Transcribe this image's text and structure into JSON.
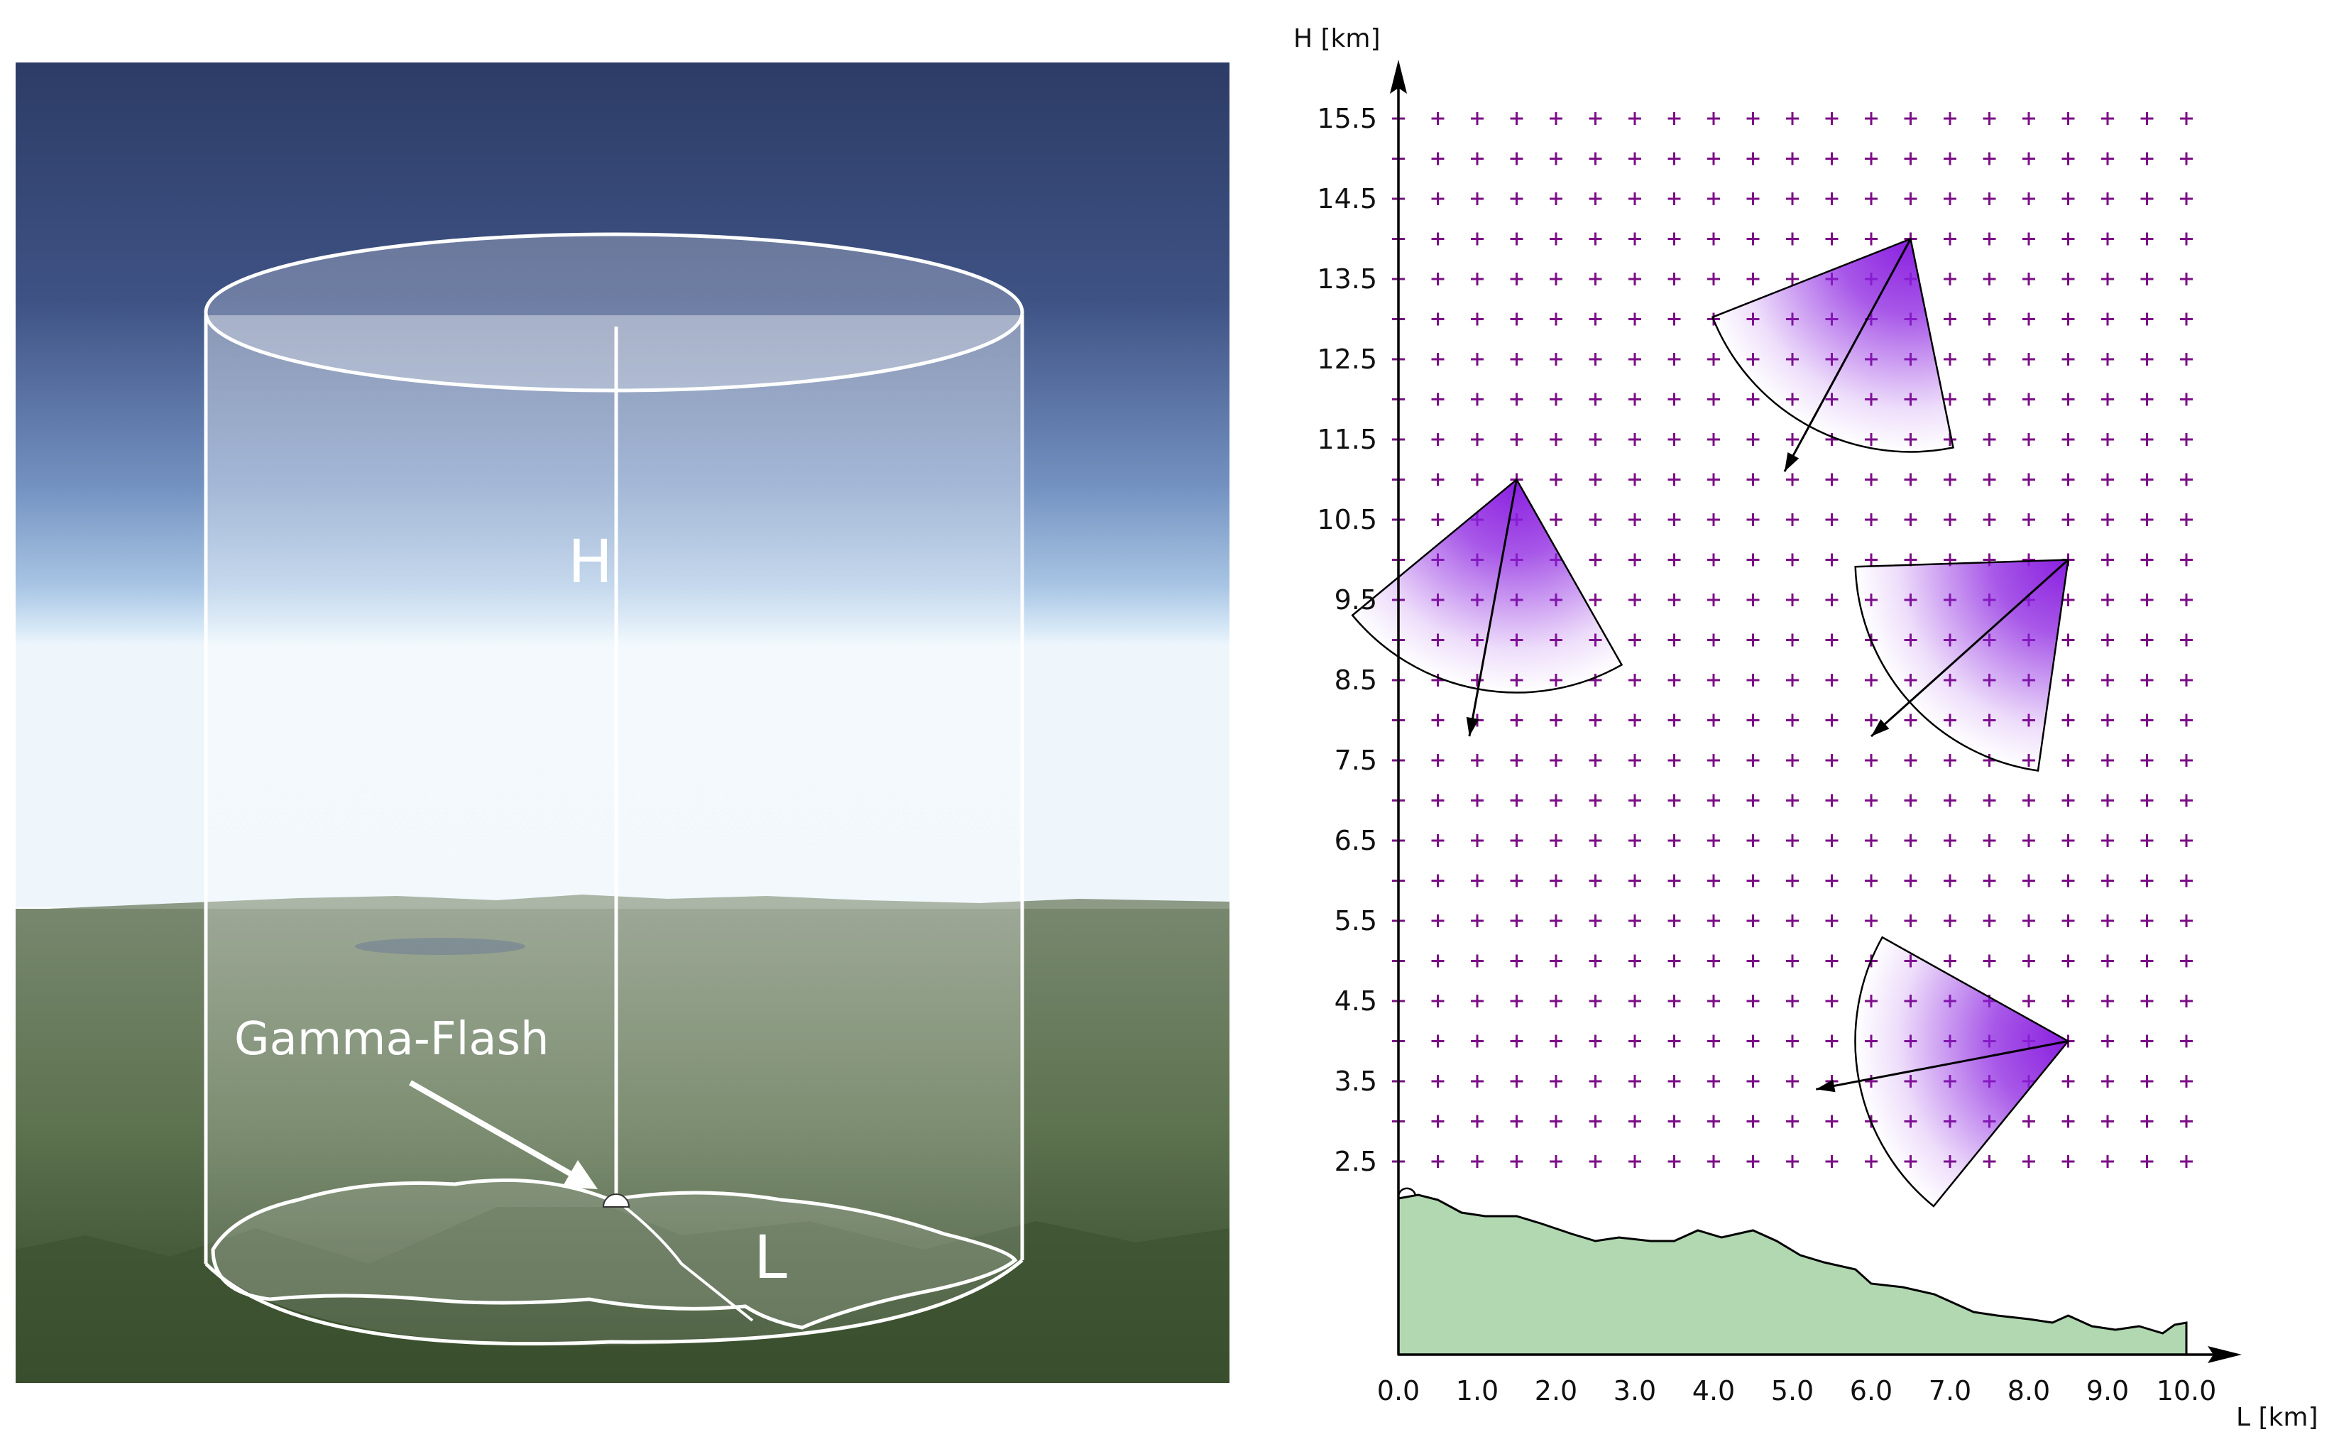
{
  "left_panel": {
    "label_height": "H",
    "label_length": "L",
    "label_event": "Gamma-Flash"
  },
  "chart_data": {
    "type": "diagram",
    "xlabel": "L [km]",
    "ylabel": "H [km]",
    "x_ticks": [
      "0.0",
      "1.0",
      "2.0",
      "3.0",
      "4.0",
      "5.0",
      "6.0",
      "7.0",
      "8.0",
      "9.0",
      "10.0"
    ],
    "y_ticks": [
      "2.5",
      "3.5",
      "4.5",
      "5.5",
      "6.5",
      "7.5",
      "8.5",
      "9.5",
      "10.5",
      "11.5",
      "12.5",
      "13.5",
      "14.5",
      "15.5"
    ],
    "xlim": [
      0,
      10
    ],
    "ylim_grid": [
      2.5,
      15.5
    ],
    "grid_step": [
      0.5,
      0.5
    ],
    "grid_marker": "plus",
    "grid_color": "#7b0d86",
    "sector_color": "#8a1fe0",
    "terrain_color": "#b1d8b1",
    "sources": [
      {
        "apex": [
          6.5,
          14.0
        ],
        "arrow_tip": [
          4.9,
          11.1
        ]
      },
      {
        "apex": [
          1.5,
          11.0
        ],
        "arrow_tip": [
          0.9,
          7.8
        ]
      },
      {
        "apex": [
          8.5,
          10.0
        ],
        "arrow_tip": [
          6.0,
          7.8
        ]
      },
      {
        "apex": [
          8.5,
          4.0
        ],
        "arrow_tip": [
          5.3,
          3.4
        ]
      }
    ]
  }
}
